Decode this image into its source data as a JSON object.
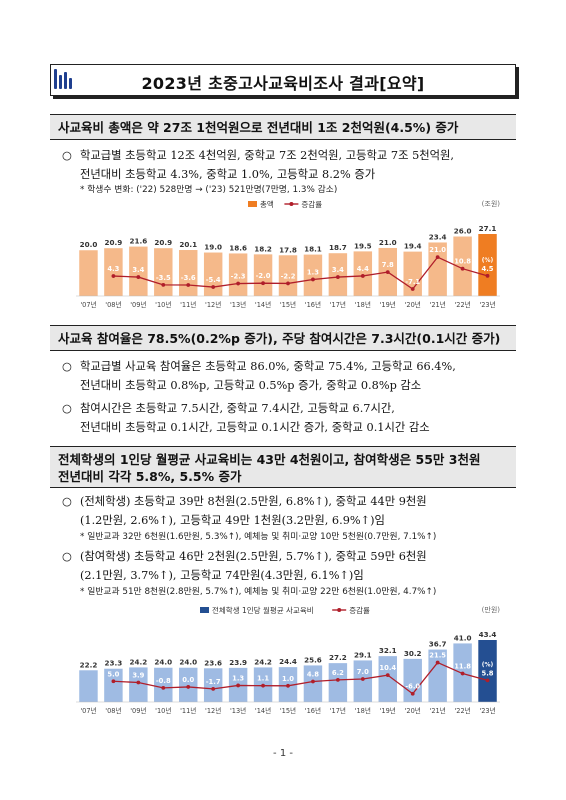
{
  "title": "2023년 초중고사교육비조사 결과[요약]",
  "section1": {
    "heading": "사교육비 총액은 약 27조 1천억원으로 전년대비 1조 2천억원(4.5%) 증가",
    "bullet": "○",
    "para_line1": "학교급별 초등학교 12조 4천억원, 중학교 7조 2천억원, 고등학교 7조 5천억원,",
    "para_line2": "전년대비 초등학교 4.3%, 중학교 1.0%, 고등학교 8.2% 증가",
    "note": "* 학생수 변화: ('22) 528만명 → ('23) 521만명(7만명, 1.3% 감소)"
  },
  "section2": {
    "heading": "사교육 참여율은 78.5%(0.2%p 증가), 주당 참여시간은 7.3시간(0.1시간 증가)",
    "bullet1": "○",
    "p1_line1": "학교급별 사교육 참여율은 초등학교 86.0%, 중학교 75.4%, 고등학교 66.4%,",
    "p1_line2": "전년대비 초등학교 0.8%p, 고등학교 0.5%p 증가, 중학교 0.8%p 감소",
    "bullet2": "○",
    "p2_line1": "참여시간은 초등학교 7.5시간, 중학교 7.4시간, 고등학교 6.7시간,",
    "p2_line2": "전년대비 초등학교 0.1시간, 고등학교 0.1시간 증가, 중학교 0.1시간 감소"
  },
  "section3": {
    "heading_line1": "전체학생의 1인당 월평균 사교육비는 43만 4천원이고, 참여학생은 55만 3천원",
    "heading_line2": "전년대비 각각 5.8%, 5.5% 증가",
    "bullet1": "○",
    "p1_line1": "(전체학생) 초등학교 39만 8천원(2.5만원, 6.8%↑), 중학교 44만 9천원",
    "p1_line2": "(1.2만원, 2.6%↑), 고등학교 49만 1천원(3.2만원, 6.9%↑)임",
    "note1": "* 일반교과 32만 6천원(1.6만원, 5.3%↑), 예체능 및 취미·교양 10만 5천원(0.7만원, 7.1%↑)",
    "bullet2": "○",
    "p2_line1": "(참여학생) 초등학교 46만 2천원(2.5만원, 5.7%↑), 중학교 59만 6천원",
    "p2_line2": "(2.1만원, 3.7%↑), 고등학교 74만원(4.3만원, 6.1%↑)임",
    "note2": "* 일반교과 51만 8천원(2.8만원, 5.7%↑), 예체능 및 취미·교양 22만 6천원(1.0만원, 4.7%↑)"
  },
  "footer": "- 1 -",
  "chart_data": [
    {
      "type": "bar",
      "unit_label": "(조원)",
      "legend": [
        "총액",
        "증감률"
      ],
      "rate_unit_label": "(%)",
      "categories": [
        "'07년",
        "'08년",
        "'09년",
        "'10년",
        "'11년",
        "'12년",
        "'13년",
        "'14년",
        "'15년",
        "'16년",
        "'17년",
        "'18년",
        "'19년",
        "'20년",
        "'21년",
        "'22년",
        "'23년"
      ],
      "series": [
        {
          "name": "총액",
          "values": [
            20.0,
            20.9,
            21.6,
            20.9,
            20.1,
            19.0,
            18.6,
            18.2,
            17.8,
            18.1,
            18.7,
            19.5,
            21.0,
            19.4,
            23.4,
            26.0,
            27.1
          ]
        },
        {
          "name": "증감률",
          "values": [
            null,
            4.3,
            3.4,
            -3.5,
            -3.6,
            -5.4,
            -2.3,
            -2.0,
            -2.2,
            1.3,
            3.4,
            4.4,
            7.8,
            -7.1,
            21.0,
            10.8,
            4.5
          ]
        }
      ],
      "colors": {
        "bar": "#f5b98a",
        "bar_highlight": "#ef7d22",
        "line": "#b01e2a"
      }
    },
    {
      "type": "bar",
      "unit_label": "(만원)",
      "legend": [
        "전체학생 1인당 월평균 사교육비",
        "증감률"
      ],
      "rate_unit_label": "(%)",
      "categories": [
        "'07년",
        "'08년",
        "'09년",
        "'10년",
        "'11년",
        "'12년",
        "'13년",
        "'14년",
        "'15년",
        "'16년",
        "'17년",
        "'18년",
        "'19년",
        "'20년",
        "'21년",
        "'22년",
        "'23년"
      ],
      "series": [
        {
          "name": "전체학생 1인당 월평균 사교육비",
          "values": [
            22.2,
            23.3,
            24.2,
            24.0,
            24.0,
            23.6,
            23.9,
            24.2,
            24.4,
            25.6,
            27.2,
            29.1,
            32.1,
            30.2,
            36.7,
            41.0,
            43.4
          ]
        },
        {
          "name": "증감률",
          "values": [
            null,
            5.0,
            3.9,
            -0.8,
            0.0,
            -1.7,
            1.3,
            1.1,
            1.0,
            4.8,
            6.2,
            7.0,
            10.4,
            -6.0,
            21.5,
            11.8,
            5.8
          ]
        }
      ],
      "colors": {
        "bar": "#9fbbe3",
        "bar_highlight": "#244f92",
        "line": "#b01e2a"
      }
    }
  ]
}
